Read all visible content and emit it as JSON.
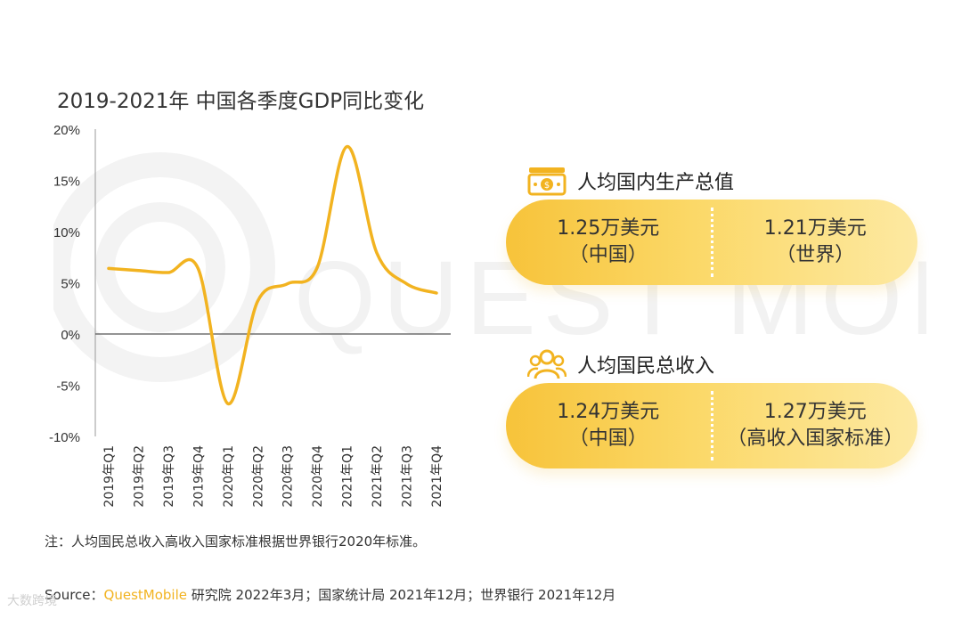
{
  "title": "2019-2021年 中国各季度GDP同比变化",
  "watermark_text": "QUEST MOBILE",
  "chart_data": {
    "type": "line",
    "title": "2019-2021年 中国各季度GDP同比变化",
    "categories": [
      "2019年Q1",
      "2019年Q2",
      "2019年Q3",
      "2019年Q4",
      "2020年Q1",
      "2020年Q2",
      "2020年Q3",
      "2020年Q4",
      "2021年Q1",
      "2021年Q2",
      "2021年Q3",
      "2021年Q4"
    ],
    "values": [
      6.4,
      6.2,
      6.0,
      6.4,
      -6.8,
      3.2,
      4.9,
      6.5,
      18.3,
      7.9,
      4.9,
      4.0
    ],
    "ylim": [
      -10,
      20
    ],
    "yticks": [
      "20%",
      "15%",
      "10%",
      "5%",
      "0%",
      "-5%",
      "-10%"
    ],
    "ytick_values": [
      20,
      15,
      10,
      5,
      0,
      -5,
      -10
    ],
    "color": "#f2b320",
    "grid": false
  },
  "cards": [
    {
      "heading": "人均国内生产总值",
      "icon": "money-icon",
      "left_value": "1.25万美元",
      "left_sub": "（中国）",
      "right_value": "1.21万美元",
      "right_sub": "（世界）"
    },
    {
      "heading": "人均国民总收入",
      "icon": "people-icon",
      "left_value": "1.24万美元",
      "left_sub": "（中国）",
      "right_value": "1.27万美元",
      "right_sub": "（高收入国家标准）"
    }
  ],
  "note": "注：人均国民总收入高收入国家标准根据世界银行2020年标准。",
  "source": {
    "prefix": "Source：",
    "brand": "QuestMobile",
    "rest": " 研究院 2022年3月；国家统计局 2021年12月；世界银行 2021年12月"
  },
  "corner_watermark": "大数跨境"
}
